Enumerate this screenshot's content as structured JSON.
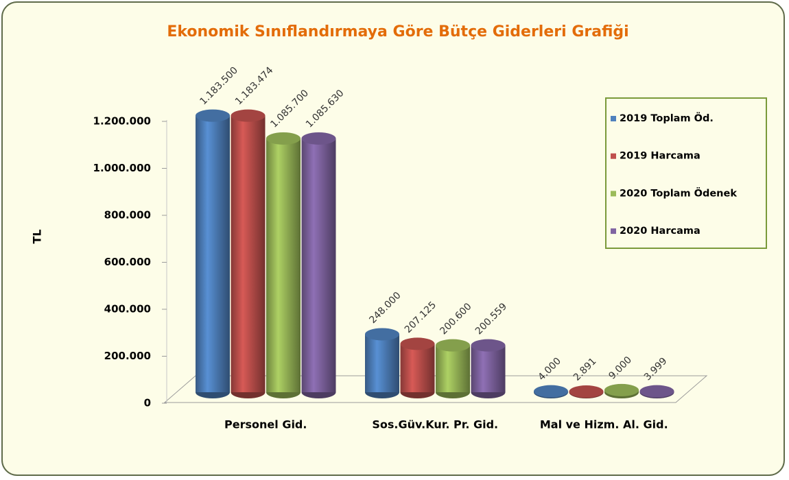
{
  "chart_data": {
    "type": "bar3d",
    "title": "Ekonomik Sınıflandırmaya Göre Bütçe Giderleri Grafiği",
    "y_label": "TL",
    "categories": [
      "Personel Gid.",
      "Sos.Güv.Kur. Pr. Gid.",
      "Mal ve Hizm. Al. Gid."
    ],
    "series": [
      {
        "name": "2019 Toplam Öd.",
        "color": "#4f81bd",
        "values": [
          1183500,
          248000,
          4000
        ],
        "value_labels": [
          "1.183.500",
          "248.000",
          "4.000"
        ]
      },
      {
        "name": "2019 Harcama",
        "color": "#c0504d",
        "values": [
          1183474,
          207125,
          2891
        ],
        "value_labels": [
          "1.183.474",
          "207.125",
          "2.891"
        ]
      },
      {
        "name": "2020 Toplam Ödenek",
        "color": "#9bbb59",
        "values": [
          1085700,
          200600,
          9000
        ],
        "value_labels": [
          "1.085.700",
          "200.600",
          "9.000"
        ]
      },
      {
        "name": "2020 Harcama",
        "color": "#8064a2",
        "values": [
          1085630,
          200559,
          3999
        ],
        "value_labels": [
          "1.085.630",
          "200.559",
          "3.999"
        ]
      }
    ],
    "ylim": [
      0,
      1200000
    ],
    "yticks": [
      0,
      {
        "value": 200000,
        "label": "200.000"
      },
      {
        "value": 400000,
        "label": "400.000"
      },
      {
        "value": 600000,
        "label": "600.000"
      },
      {
        "value": 800000,
        "label": "800.000"
      },
      {
        "value": 1000000,
        "label": "1.000.000"
      },
      {
        "value": 1200000,
        "label": "1.200.000"
      }
    ],
    "legend": "right"
  }
}
